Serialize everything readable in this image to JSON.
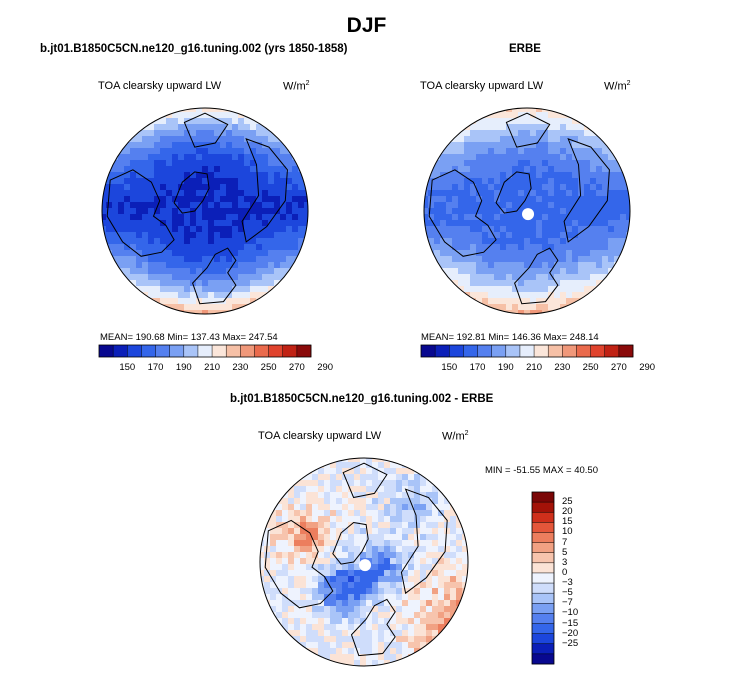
{
  "season": "DJF",
  "colors": {
    "abs_scale": [
      "#08088f",
      "#0b1fb8",
      "#1c46dc",
      "#3466ea",
      "#5580ef",
      "#7aa0f3",
      "#a9c4f8",
      "#e6eefc",
      "#fbe6da",
      "#f6c0a6",
      "#f0987a",
      "#ea6a4c",
      "#e0432d",
      "#c02214",
      "#8a0a0a"
    ],
    "diff_scale": [
      "#08088f",
      "#0b1fb8",
      "#1c46dc",
      "#3466ea",
      "#5580ef",
      "#7aa0f3",
      "#a9c4f8",
      "#cfddfb",
      "#eef3fe",
      "#fbe3d6",
      "#f7c4ad",
      "#f1a183",
      "#ec7e5e",
      "#e4563a",
      "#cf2f1b",
      "#a31208",
      "#7a0606"
    ],
    "land_line": "#000000",
    "hole": "#ffffff"
  },
  "panels": {
    "left": {
      "title": "b.jt01.B1850C5CN.ne120_g16.tuning.002 (yrs 1850-1858)",
      "variable": "TOA clearsky upward LW",
      "units": "W/m",
      "units_exp": "2",
      "stats": "MEAN= 190.68   Min= 137.43   Max= 247.54"
    },
    "right": {
      "title": "ERBE",
      "variable": "TOA clearsky upward LW",
      "units": "W/m",
      "units_exp": "2",
      "stats": "MEAN= 192.81   Min= 146.36   Max= 248.14"
    },
    "diff": {
      "title": "b.jt01.B1850C5CN.ne120_g16.tuning.002 - ERBE",
      "variable": "TOA clearsky upward LW",
      "units": "W/m",
      "units_exp": "2",
      "stats": "MIN = -51.55 MAX =  40.50"
    }
  },
  "chart_data": [
    {
      "type": "heatmap",
      "projection": "north polar stereographic",
      "title": "b.jt01.B1850C5CN.ne120_g16.tuning.002 (yrs 1850-1858)",
      "variable": "TOA clearsky upward LW",
      "units": "W/m2",
      "mean": 190.68,
      "min": 137.43,
      "max": 247.54,
      "colorbar_ticks": [
        "150",
        "170",
        "190",
        "210",
        "230",
        "250",
        "270",
        "290"
      ],
      "colorbar_range": [
        140,
        300
      ],
      "pattern": {
        "pole": 160,
        "atlantic_europe": 240,
        "pacific": 235,
        "siberia": 165,
        "canada": 170
      }
    },
    {
      "type": "heatmap",
      "projection": "north polar stereographic",
      "title": "ERBE",
      "variable": "TOA clearsky upward LW",
      "units": "W/m2",
      "mean": 192.81,
      "min": 146.36,
      "max": 248.14,
      "colorbar_ticks": [
        "150",
        "170",
        "190",
        "210",
        "230",
        "250",
        "270",
        "290"
      ],
      "colorbar_range": [
        140,
        300
      ],
      "pattern": {
        "pole": 180,
        "atlantic_europe": 242,
        "pacific": 238,
        "siberia": 175,
        "canada": 180
      }
    },
    {
      "type": "heatmap",
      "projection": "north polar stereographic",
      "title": "b.jt01.B1850C5CN.ne120_g16.tuning.002 - ERBE",
      "variable": "TOA clearsky upward LW",
      "units": "W/m2",
      "min": -51.55,
      "max": 40.5,
      "colorbar_labels": [
        "25",
        "20",
        "15",
        "10",
        "7",
        "5",
        "3",
        "0",
        "−3",
        "−5",
        "−7",
        "−10",
        "−15",
        "−20",
        "−25"
      ]
    }
  ]
}
